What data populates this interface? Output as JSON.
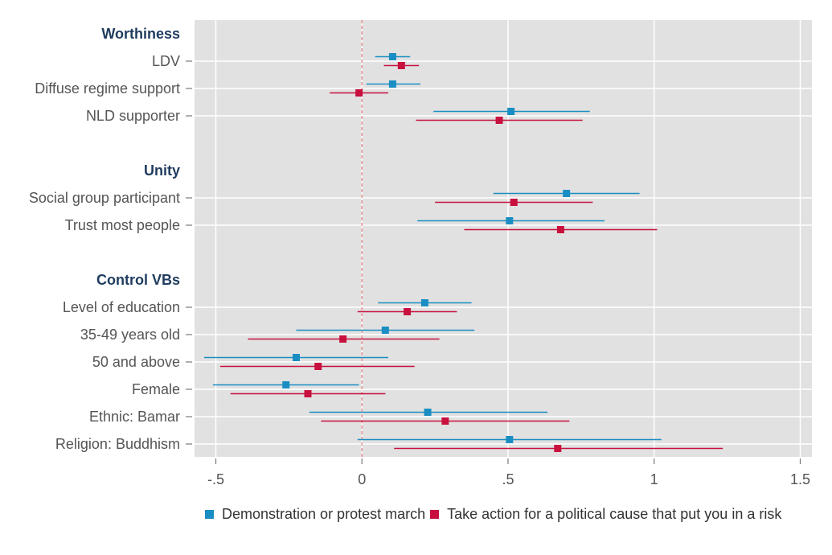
{
  "chart_data": {
    "type": "scatter",
    "subtype": "coefficient-plot",
    "x_ticks": [
      -0.5,
      0,
      0.5,
      1,
      1.5
    ],
    "x_tick_labels": [
      "-.5",
      "0",
      ".5",
      "1",
      "1.5"
    ],
    "xlim": [
      -0.57,
      1.55
    ],
    "reference_line_x": 0,
    "grid": true,
    "legend_position": "bottom",
    "series": [
      {
        "name": "Demonstration or protest march",
        "color": "#1a8ec2"
      },
      {
        "name": "Take action for a political cause that put you in a risk",
        "color": "#c8103e"
      }
    ],
    "rows": [
      {
        "kind": "header",
        "label": "Worthiness"
      },
      {
        "kind": "item",
        "label": "LDV",
        "estimates": [
          {
            "value": 0.105,
            "low": 0.045,
            "high": 0.165
          },
          {
            "value": 0.135,
            "low": 0.075,
            "high": 0.195
          }
        ]
      },
      {
        "kind": "item",
        "label": "Diffuse regime support",
        "estimates": [
          {
            "value": 0.105,
            "low": 0.015,
            "high": 0.2
          },
          {
            "value": -0.01,
            "low": -0.11,
            "high": 0.09
          }
        ]
      },
      {
        "kind": "item",
        "label": "NLD supporter",
        "estimates": [
          {
            "value": 0.51,
            "low": 0.245,
            "high": 0.78
          },
          {
            "value": 0.47,
            "low": 0.185,
            "high": 0.755
          }
        ]
      },
      {
        "kind": "spacer"
      },
      {
        "kind": "header",
        "label": "Unity"
      },
      {
        "kind": "item",
        "label": "Social group participant",
        "estimates": [
          {
            "value": 0.7,
            "low": 0.45,
            "high": 0.95
          },
          {
            "value": 0.52,
            "low": 0.25,
            "high": 0.79
          }
        ]
      },
      {
        "kind": "item",
        "label": "Trust most people",
        "estimates": [
          {
            "value": 0.505,
            "low": 0.19,
            "high": 0.83
          },
          {
            "value": 0.68,
            "low": 0.35,
            "high": 1.01
          }
        ]
      },
      {
        "kind": "spacer"
      },
      {
        "kind": "header",
        "label": "Control VBs"
      },
      {
        "kind": "item",
        "label": "Level of education",
        "estimates": [
          {
            "value": 0.215,
            "low": 0.055,
            "high": 0.375
          },
          {
            "value": 0.155,
            "low": -0.015,
            "high": 0.325
          }
        ]
      },
      {
        "kind": "item",
        "label": "35-49 years old",
        "estimates": [
          {
            "value": 0.08,
            "low": -0.225,
            "high": 0.385
          },
          {
            "value": -0.065,
            "low": -0.39,
            "high": 0.265
          }
        ]
      },
      {
        "kind": "item",
        "label": "50 and above",
        "estimates": [
          {
            "value": -0.225,
            "low": -0.54,
            "high": 0.09
          },
          {
            "value": -0.15,
            "low": -0.485,
            "high": 0.18
          }
        ]
      },
      {
        "kind": "item",
        "label": "Female",
        "estimates": [
          {
            "value": -0.26,
            "low": -0.51,
            "high": -0.01
          },
          {
            "value": -0.185,
            "low": -0.45,
            "high": 0.08
          }
        ]
      },
      {
        "kind": "item",
        "label": "Ethnic: Bamar",
        "estimates": [
          {
            "value": 0.225,
            "low": -0.18,
            "high": 0.635
          },
          {
            "value": 0.285,
            "low": -0.14,
            "high": 0.71
          }
        ]
      },
      {
        "kind": "item",
        "label": "Religion: Buddhism",
        "estimates": [
          {
            "value": 0.505,
            "low": -0.015,
            "high": 1.025
          },
          {
            "value": 0.67,
            "low": 0.11,
            "high": 1.235
          }
        ]
      }
    ]
  }
}
